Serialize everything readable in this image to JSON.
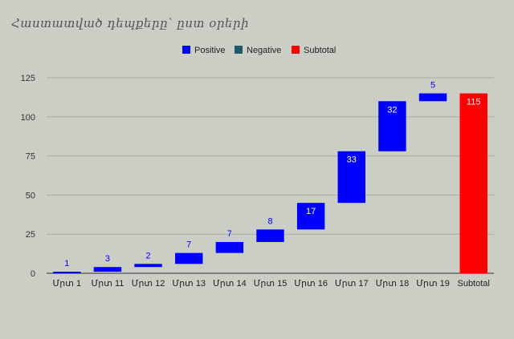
{
  "chart_data": {
    "type": "waterfall",
    "title": "Հաստատված դեպքերը՝ ըստ օրերի",
    "xlabel": "",
    "ylabel": "",
    "ylim": [
      0,
      125
    ],
    "yticks": [
      0,
      25,
      50,
      75,
      100,
      125
    ],
    "grid": true,
    "legend_position": "top",
    "legend": [
      {
        "name": "Positive",
        "color": "#0000ff"
      },
      {
        "name": "Negative",
        "color": "#1f5a66"
      },
      {
        "name": "Subtotal",
        "color": "#ff0000"
      }
    ],
    "categories": [
      "Մրտ 1",
      "Մրտ 11",
      "Մրտ 12",
      "Մրտ 13",
      "Մրտ 14",
      "Մրտ 15",
      "Մրտ 16",
      "Մրտ  17",
      "Մրտ 18",
      "Մրտ 19",
      "Subtotal"
    ],
    "values": [
      1,
      3,
      2,
      7,
      7,
      8,
      17,
      33,
      32,
      5,
      115
    ],
    "kinds": [
      "positive",
      "positive",
      "positive",
      "positive",
      "positive",
      "positive",
      "positive",
      "positive",
      "positive",
      "positive",
      "subtotal"
    ]
  }
}
